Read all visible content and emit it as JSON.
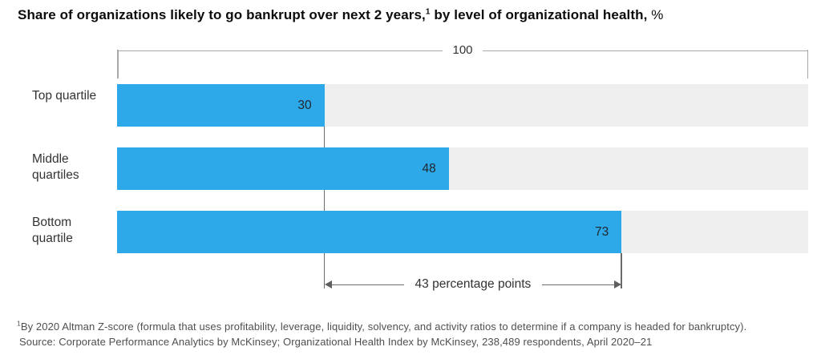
{
  "title": {
    "text_bold_1": "Share of organizations likely to go bankrupt over next 2 years,",
    "footnote_marker": "1",
    "text_bold_2": " by level of organizational health,",
    "unit_suffix": " %"
  },
  "chart_data": {
    "type": "bar",
    "orientation": "horizontal",
    "title": "Share of organizations likely to go bankrupt over next 2 years, by level of organizational health, %",
    "categories": [
      "Top quartile",
      "Middle quartiles",
      "Bottom quartile"
    ],
    "values": [
      30,
      48,
      73
    ],
    "unit": "%",
    "xlim": [
      0,
      100
    ],
    "scale_max_label": "100",
    "grid": false,
    "legend": false,
    "bar_color": "#2da9ea",
    "track_color": "#efefef",
    "annotation": {
      "from": 30,
      "to": 73,
      "label": "43 percentage points"
    }
  },
  "footnote": {
    "marker": "1",
    "text": "By 2020 Altman Z-score (formula that uses profitability, leverage, liquidity, solvency, and activity ratios to determine if a company is headed for bankruptcy).",
    "source": "Source: Corporate Performance Analytics by McKinsey; Organizational Health Index by McKinsey, 238,489 respondents, April 2020–21"
  },
  "colors": {
    "bar": "#2da9ea",
    "track": "#efefef",
    "bracket_line": "#a9a9a9",
    "threshold_line": "#6a6a6a",
    "annotation_line": "#6e6e6e",
    "title_text": "#0c0c0c",
    "label_text": "#333333",
    "footnote_text": "#4f4f4f"
  }
}
